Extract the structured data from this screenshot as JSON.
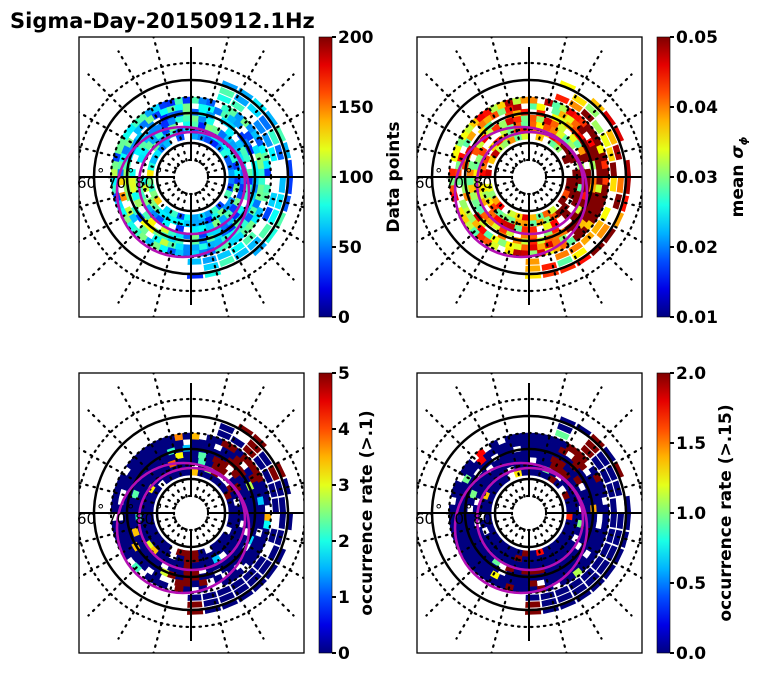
{
  "chart_data": [
    {
      "type": "heatmap",
      "projection": "polar (geomagnetic latitude / MLT)",
      "title": "Sigma-Day-20150912.1Hz",
      "colorbar": {
        "label": "Data points",
        "range": [
          0,
          200
        ],
        "ticks": [
          "0",
          "50",
          "100",
          "150",
          "200"
        ],
        "colormap": "jet"
      },
      "lat_labels": [
        "60",
        "70",
        "80"
      ],
      "dominant_values": "mostly 20-120 counts, scattered 130-180 on dusk side",
      "seed": 11
    },
    {
      "type": "heatmap",
      "projection": "polar (geomagnetic latitude / MLT)",
      "title": "",
      "colorbar": {
        "label": "mean σφ",
        "range": [
          0.01,
          0.05
        ],
        "ticks": [
          "0.01",
          "0.02",
          "0.03",
          "0.04",
          "0.05"
        ],
        "colormap": "jet"
      },
      "lat_labels": [
        "60",
        "70",
        "80"
      ],
      "dominant_values": "mostly 0.025-0.05, saturated (0.05) on dawn-side oval",
      "seed": 23
    },
    {
      "type": "heatmap",
      "projection": "polar (geomagnetic latitude / MLT)",
      "title": "",
      "colorbar": {
        "label": "occurrence rate (>.1)",
        "range": [
          0,
          5
        ],
        "ticks": [
          "0",
          "1",
          "2",
          "3",
          "4",
          "5"
        ],
        "colormap": "jet"
      },
      "lat_labels": [
        "60",
        "70",
        "80"
      ],
      "dominant_values": "mostly 0, patches of 5 near noon and dawn-side oval",
      "seed": 37
    },
    {
      "type": "heatmap",
      "projection": "polar (geomagnetic latitude / MLT)",
      "title": "",
      "colorbar": {
        "label": "occurrence rate (>.15)",
        "range": [
          0.0,
          2.0
        ],
        "ticks": [
          "0.0",
          "0.5",
          "1.0",
          "1.5",
          "2.0"
        ],
        "colormap": "jet"
      },
      "lat_labels": [
        "60",
        "70",
        "80"
      ],
      "dominant_values": "mostly 0, patches of 2.0 near noon and dawn-side oval",
      "seed": 41
    }
  ],
  "overlay": {
    "auroral_oval_color": "#b40fb4",
    "grid_color": "#000000"
  }
}
